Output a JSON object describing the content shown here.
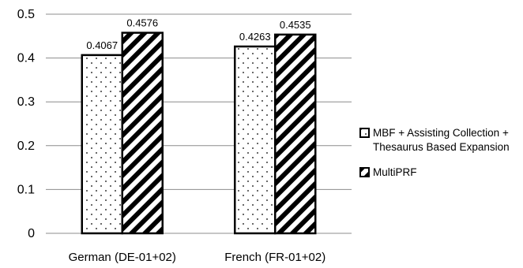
{
  "chart_data": {
    "type": "bar",
    "categories": [
      "German (DE-01+02)",
      "French (FR-01+02)"
    ],
    "series": [
      {
        "name": "MBF + Assisting Collection + Thesaurus Based Expansion",
        "values": [
          0.4067,
          0.4263
        ],
        "pattern": "dots"
      },
      {
        "name": "MultiPRF",
        "values": [
          0.4576,
          0.4535
        ],
        "pattern": "diagonal-stripes"
      }
    ],
    "value_labels": [
      [
        "0.4067",
        "0.4263"
      ],
      [
        "0.4576",
        "0.4535"
      ]
    ],
    "ylim": [
      0,
      0.5
    ],
    "yticks": [
      0,
      0.1,
      0.2,
      0.3,
      0.4,
      0.5
    ],
    "ytick_labels": [
      "0",
      "0.1",
      "0.2",
      "0.3",
      "0.4",
      "0.5"
    ],
    "grid": true,
    "legend_position": "right",
    "colors": {
      "grid": "#8c8c8c",
      "bar_border": "#000000",
      "bar_fill": "#ffffff"
    }
  }
}
